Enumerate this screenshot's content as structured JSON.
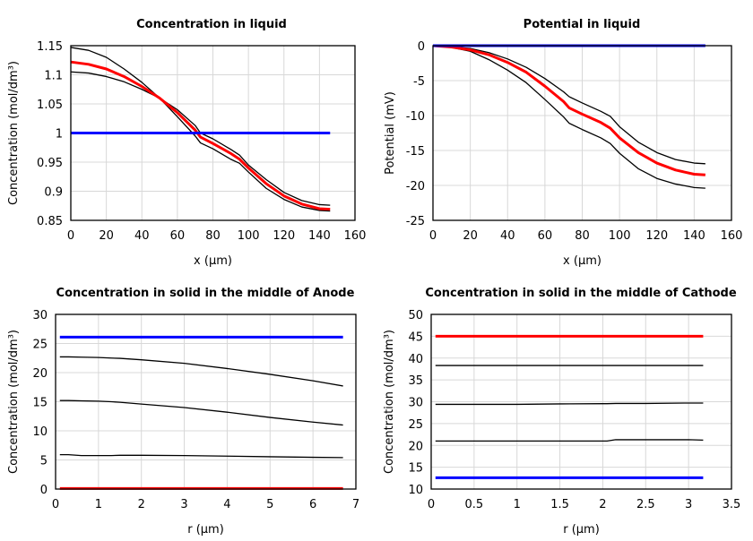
{
  "chart_data": [
    {
      "type": "line",
      "title": "Concentration in liquid",
      "xlabel": "x (µm)",
      "ylabel": "Concentration (mol/dm³)",
      "xlim": [
        0,
        160
      ],
      "ylim": [
        0.85,
        1.15
      ],
      "xticks": [
        "0",
        "20",
        "40",
        "60",
        "80",
        "100",
        "120",
        "140",
        "160"
      ],
      "yticks": [
        "0.85",
        "0.9",
        "0.95",
        "1",
        "1.05",
        "1.1",
        "1.15"
      ],
      "grid": true,
      "x": [
        0,
        10,
        20,
        30,
        40,
        50,
        60,
        70,
        73,
        80,
        90,
        95,
        100,
        110,
        120,
        130,
        140,
        146
      ],
      "series": [
        {
          "color": "#000000",
          "values": [
            1.147,
            1.142,
            1.13,
            1.11,
            1.087,
            1.06,
            1.028,
            0.995,
            0.983,
            0.973,
            0.955,
            0.948,
            0.933,
            0.905,
            0.886,
            0.873,
            0.867,
            0.866
          ]
        },
        {
          "color": "#000000",
          "values": [
            1.105,
            1.103,
            1.097,
            1.088,
            1.075,
            1.06,
            1.04,
            1.013,
            1.0,
            0.99,
            0.972,
            0.962,
            0.945,
            0.92,
            0.898,
            0.884,
            0.877,
            0.876
          ]
        },
        {
          "color": "#ff0000",
          "values": [
            1.122,
            1.118,
            1.11,
            1.097,
            1.08,
            1.06,
            1.035,
            1.005,
            0.993,
            0.982,
            0.965,
            0.955,
            0.94,
            0.913,
            0.892,
            0.878,
            0.87,
            0.869
          ]
        },
        {
          "color": "#0000ff",
          "values": [
            1,
            1,
            1,
            1,
            1,
            1,
            1,
            1,
            1,
            1,
            1,
            1,
            1,
            1,
            1,
            1,
            1,
            1
          ]
        }
      ]
    },
    {
      "type": "line",
      "title": "Potential in liquid",
      "xlabel": "x (µm)",
      "ylabel": "Potential (mV)",
      "xlim": [
        0,
        160
      ],
      "ylim": [
        -25,
        0
      ],
      "xticks": [
        "0",
        "20",
        "40",
        "60",
        "80",
        "100",
        "120",
        "140",
        "160"
      ],
      "yticks": [
        "-25",
        "-20",
        "-15",
        "-10",
        "-5",
        "0"
      ],
      "grid": true,
      "x": [
        0,
        10,
        20,
        30,
        40,
        50,
        60,
        70,
        73,
        80,
        90,
        95,
        100,
        110,
        120,
        130,
        140,
        146
      ],
      "series": [
        {
          "color": "#000000",
          "values": [
            0,
            -0.15,
            -0.4,
            -1.0,
            -1.9,
            -3.1,
            -4.7,
            -6.6,
            -7.3,
            -8.2,
            -9.4,
            -10.1,
            -11.6,
            -13.8,
            -15.3,
            -16.3,
            -16.8,
            -16.9
          ]
        },
        {
          "color": "#000000",
          "values": [
            0,
            -0.25,
            -0.8,
            -2.0,
            -3.5,
            -5.3,
            -7.7,
            -10.2,
            -11.1,
            -12.0,
            -13.2,
            -14.0,
            -15.4,
            -17.6,
            -19.0,
            -19.8,
            -20.3,
            -20.4
          ]
        },
        {
          "color": "#ff0000",
          "values": [
            0,
            -0.2,
            -0.6,
            -1.3,
            -2.4,
            -3.8,
            -5.8,
            -8.0,
            -8.9,
            -9.8,
            -11.0,
            -11.8,
            -13.2,
            -15.3,
            -16.8,
            -17.8,
            -18.4,
            -18.5
          ]
        },
        {
          "color": "#0000ff",
          "values": [
            0,
            0,
            0,
            0,
            0,
            0,
            0,
            0,
            0,
            0,
            0,
            0,
            0,
            0,
            0,
            0,
            0,
            0
          ]
        }
      ]
    },
    {
      "type": "line",
      "title": "Concentration in solid in the middle of Anode",
      "xlabel": "r (µm)",
      "ylabel": "Concentration (mol/dm³)",
      "xlim": [
        0,
        7
      ],
      "ylim": [
        0,
        30
      ],
      "xticks": [
        "0",
        "1",
        "2",
        "3",
        "4",
        "5",
        "6",
        "7"
      ],
      "yticks": [
        "0",
        "5",
        "10",
        "15",
        "20",
        "25",
        "30"
      ],
      "grid": true,
      "x": [
        0.1,
        0.3,
        0.6,
        1,
        1.3,
        1.5,
        2,
        3,
        4,
        5,
        6,
        6.7
      ],
      "series": [
        {
          "color": "#000000",
          "values": [
            22.7,
            22.7,
            22.65,
            22.6,
            22.5,
            22.45,
            22.2,
            21.6,
            20.7,
            19.7,
            18.6,
            17.7
          ]
        },
        {
          "color": "#000000",
          "values": [
            15.2,
            15.2,
            15.15,
            15.1,
            15.0,
            14.9,
            14.6,
            14.0,
            13.2,
            12.3,
            11.5,
            11.0
          ]
        },
        {
          "color": "#000000",
          "values": [
            5.9,
            5.9,
            5.75,
            5.75,
            5.75,
            5.8,
            5.8,
            5.75,
            5.65,
            5.55,
            5.45,
            5.4
          ]
        },
        {
          "color": "#ff0000",
          "values": [
            0.1,
            0.1,
            0.1,
            0.1,
            0.1,
            0.1,
            0.1,
            0.1,
            0.1,
            0.1,
            0.1,
            0.1
          ]
        },
        {
          "color": "#0000ff",
          "values": [
            26.1,
            26.1,
            26.1,
            26.1,
            26.1,
            26.1,
            26.1,
            26.1,
            26.1,
            26.1,
            26.1,
            26.1
          ]
        }
      ]
    },
    {
      "type": "line",
      "title": "Concentration in solid in the middle of Cathode",
      "xlabel": "r (µm)",
      "ylabel": "Concentration (mol/dm³)",
      "xlim": [
        0,
        3.5
      ],
      "ylim": [
        10,
        50
      ],
      "xticks": [
        "0",
        "0.5",
        "1",
        "1.5",
        "2",
        "2.5",
        "3",
        "3.5"
      ],
      "yticks": [
        "10",
        "15",
        "20",
        "25",
        "30",
        "35",
        "40",
        "45",
        "50"
      ],
      "grid": true,
      "x": [
        0.05,
        0.5,
        1,
        1.5,
        2,
        2.05,
        2.15,
        2.5,
        3,
        3.17
      ],
      "series": [
        {
          "color": "#000000",
          "values": [
            38.3,
            38.3,
            38.3,
            38.3,
            38.3,
            38.3,
            38.3,
            38.3,
            38.3,
            38.3
          ]
        },
        {
          "color": "#000000",
          "values": [
            29.4,
            29.4,
            29.4,
            29.5,
            29.55,
            29.55,
            29.6,
            29.6,
            29.7,
            29.7
          ]
        },
        {
          "color": "#000000",
          "values": [
            21.0,
            21.0,
            21.0,
            21.0,
            21.0,
            21.0,
            21.3,
            21.3,
            21.3,
            21.2
          ]
        },
        {
          "color": "#ff0000",
          "values": [
            45,
            45,
            45,
            45,
            45,
            45,
            45,
            45,
            45,
            45
          ]
        },
        {
          "color": "#0000ff",
          "values": [
            12.6,
            12.6,
            12.6,
            12.6,
            12.6,
            12.6,
            12.6,
            12.6,
            12.6,
            12.6
          ]
        }
      ]
    }
  ]
}
